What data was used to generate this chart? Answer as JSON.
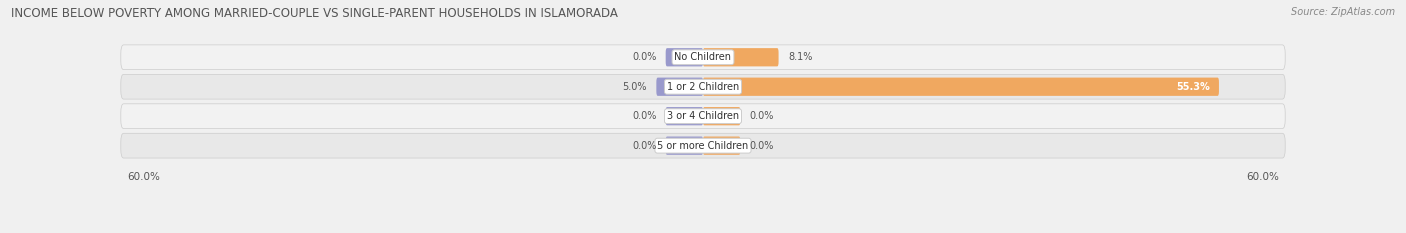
{
  "title": "INCOME BELOW POVERTY AMONG MARRIED-COUPLE VS SINGLE-PARENT HOUSEHOLDS IN ISLAMORADA",
  "source": "Source: ZipAtlas.com",
  "categories": [
    "No Children",
    "1 or 2 Children",
    "3 or 4 Children",
    "5 or more Children"
  ],
  "married_values": [
    0.0,
    5.0,
    0.0,
    0.0
  ],
  "single_values": [
    8.1,
    55.3,
    0.0,
    0.0
  ],
  "max_val": 60.0,
  "married_color": "#9999cc",
  "single_color": "#f0a860",
  "row_bg_light": "#f2f2f2",
  "row_bg_dark": "#e8e8e8",
  "title_fontsize": 8.5,
  "label_fontsize": 7.0,
  "axis_label_fontsize": 7.5,
  "legend_fontsize": 7.5,
  "source_fontsize": 7.0,
  "stub_size": 4.0
}
